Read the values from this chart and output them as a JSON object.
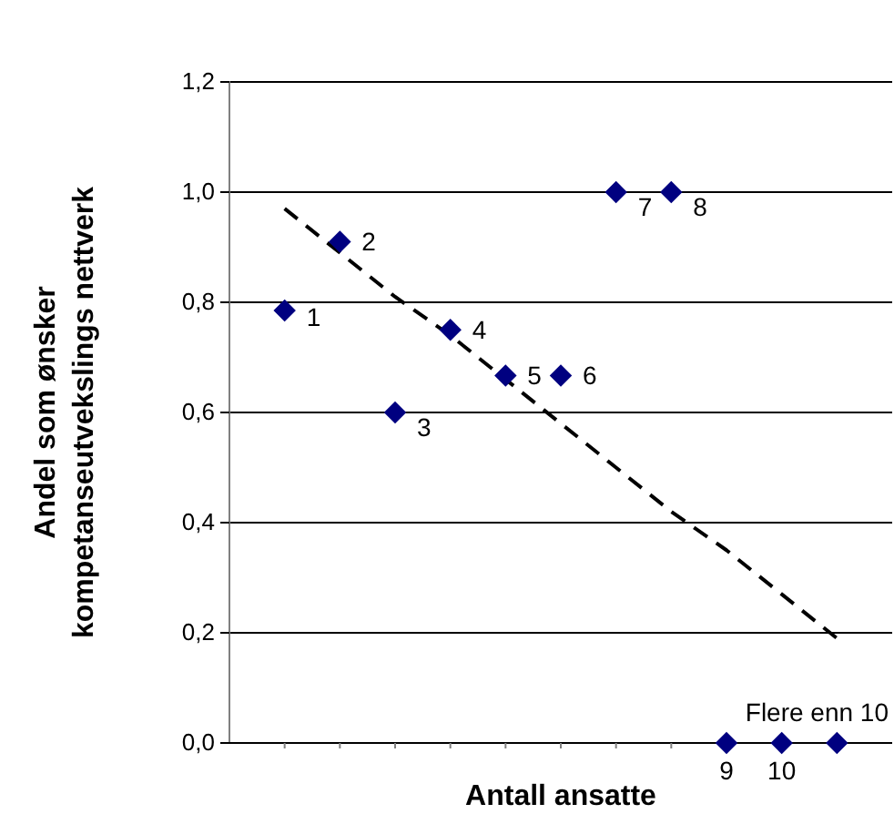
{
  "chart_data": {
    "type": "scatter",
    "xlabel": "Antall ansatte",
    "ylabel": "Andel som ønsker kompetanseutvekslings nettverk",
    "categories": [
      null,
      null,
      null,
      null,
      null,
      null,
      null,
      null,
      null,
      null,
      null
    ],
    "tick_labels": "y",
    "annotations": [
      "1",
      "2",
      "3",
      "4",
      "5",
      "6",
      "7",
      "8",
      "9",
      "10",
      "Flere enn 10"
    ],
    "ylim": [
      0,
      1.2
    ],
    "yticks": [
      {
        "value": 0,
        "label": "0,0"
      },
      {
        "value": 0.2,
        "label": "0,2"
      },
      {
        "value": 0.4,
        "label": "0,4"
      },
      {
        "value": 0.6,
        "label": "0,6"
      },
      {
        "value": 0.8,
        "label": "0,8"
      },
      {
        "value": 1,
        "label": "1,0"
      },
      {
        "value": 1.2,
        "label": "1,2"
      }
    ],
    "grid": "y",
    "series": [
      {
        "color": "#000080",
        "marker": "diamond",
        "values": [
          0.785,
          0.91,
          0.6,
          0.75,
          0.667,
          0.667,
          1,
          1,
          0,
          0,
          0
        ]
      },
      {
        "type": "line",
        "color": "#000000",
        "line_style": "dashed",
        "marker": "none",
        "values": [
          0.97,
          0.89,
          0.81,
          0.74,
          0.66,
          0.58,
          0.5,
          0.42,
          0.35,
          0.27,
          0.19
        ]
      }
    ]
  }
}
